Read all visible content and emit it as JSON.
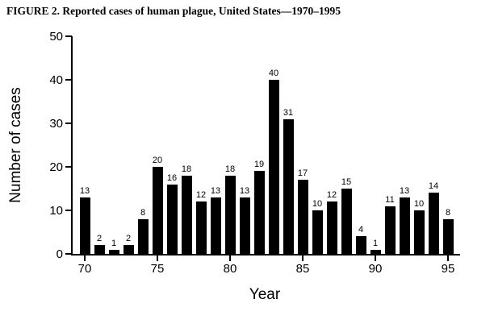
{
  "chart_data": {
    "type": "bar",
    "title": "FIGURE 2. Reported cases of human plague, United States—1970–1995",
    "xlabel": "Year",
    "ylabel": "Number of cases",
    "categories": [
      1970,
      1971,
      1972,
      1973,
      1974,
      1975,
      1976,
      1977,
      1978,
      1979,
      1980,
      1981,
      1982,
      1983,
      1984,
      1985,
      1986,
      1987,
      1988,
      1989,
      1990,
      1991,
      1992,
      1993,
      1994,
      1995
    ],
    "values": [
      13,
      2,
      1,
      2,
      8,
      20,
      16,
      18,
      12,
      13,
      18,
      13,
      19,
      40,
      31,
      17,
      10,
      12,
      15,
      4,
      1,
      11,
      13,
      10,
      14,
      8
    ],
    "value_labels_shown": true,
    "ylim": [
      0,
      50
    ],
    "yticks": [
      0,
      10,
      20,
      30,
      40,
      50
    ],
    "xtick_labels": [
      "70",
      "75",
      "80",
      "85",
      "90",
      "95"
    ],
    "xtick_positions": [
      0,
      5,
      10,
      15,
      20,
      25
    ],
    "grid": false,
    "legend": null,
    "bar_color": "#000000",
    "axis_color": "#000000",
    "background_color": "#ffffff"
  }
}
